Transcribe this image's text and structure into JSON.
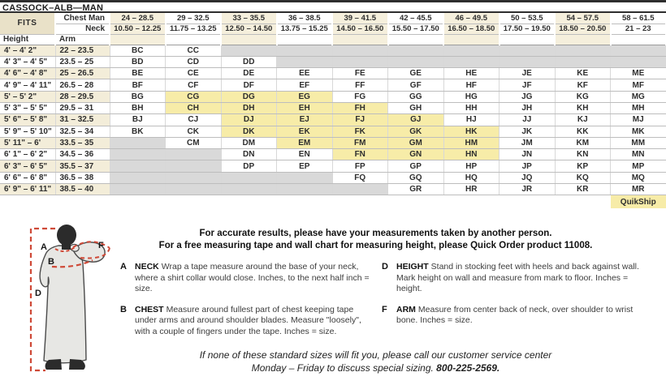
{
  "title": "CASSOCK–ALB—MAN",
  "table": {
    "fits_label": "FITS",
    "chest_label": "Chest Man",
    "neck_label": "Neck",
    "height_label": "Height",
    "arm_label": "Arm",
    "chest_ranges": [
      "24 – 28.5",
      "29 – 32.5",
      "33 – 35.5",
      "36 – 38.5",
      "39 – 41.5",
      "42 – 45.5",
      "46 – 49.5",
      "50 – 53.5",
      "54 – 57.5",
      "58 – 61.5"
    ],
    "neck_ranges": [
      "10.50 – 12.25",
      "11.75 – 13.25",
      "12.50 – 14.50",
      "13.75 – 15.25",
      "14.50 – 16.50",
      "15.50 – 17.50",
      "16.50 – 18.50",
      "17.50 – 19.50",
      "18.50 – 20.50",
      "21 – 23"
    ],
    "rows": [
      {
        "height": "4' – 4' 2\"",
        "arm": "22 – 23.5",
        "cells": [
          "BC",
          "CC",
          "",
          "",
          "",
          "",
          "",
          "",
          "",
          ""
        ]
      },
      {
        "height": "4' 3\" – 4' 5\"",
        "arm": "23.5 – 25",
        "cells": [
          "BD",
          "CD",
          "DD",
          "",
          "",
          "",
          "",
          "",
          "",
          ""
        ]
      },
      {
        "height": "4' 6\" – 4' 8\"",
        "arm": "25 – 26.5",
        "cells": [
          "BE",
          "CE",
          "DE",
          "EE",
          "FE",
          "GE",
          "HE",
          "JE",
          "KE",
          "ME"
        ]
      },
      {
        "height": "4' 9\" – 4' 11\"",
        "arm": "26.5 – 28",
        "cells": [
          "BF",
          "CF",
          "DF",
          "EF",
          "FF",
          "GF",
          "HF",
          "JF",
          "KF",
          "MF"
        ]
      },
      {
        "height": "5' – 5' 2\"",
        "arm": "28 – 29.5",
        "cells": [
          "BG",
          "CG",
          "DG",
          "EG",
          "FG",
          "GG",
          "HG",
          "JG",
          "KG",
          "MG"
        ]
      },
      {
        "height": "5' 3\" – 5' 5\"",
        "arm": "29.5 – 31",
        "cells": [
          "BH",
          "CH",
          "DH",
          "EH",
          "FH",
          "GH",
          "HH",
          "JH",
          "KH",
          "MH"
        ]
      },
      {
        "height": "5' 6\" – 5' 8\"",
        "arm": "31 – 32.5",
        "cells": [
          "BJ",
          "CJ",
          "DJ",
          "EJ",
          "FJ",
          "GJ",
          "HJ",
          "JJ",
          "KJ",
          "MJ"
        ]
      },
      {
        "height": "5' 9\" – 5' 10\"",
        "arm": "32.5 – 34",
        "cells": [
          "BK",
          "CK",
          "DK",
          "EK",
          "FK",
          "GK",
          "HK",
          "JK",
          "KK",
          "MK"
        ]
      },
      {
        "height": "5' 11\" – 6'",
        "arm": "33.5 – 35",
        "cells": [
          "",
          "CM",
          "DM",
          "EM",
          "FM",
          "GM",
          "HM",
          "JM",
          "KM",
          "MM"
        ]
      },
      {
        "height": "6' 1\" – 6' 2\"",
        "arm": "34.5 – 36",
        "cells": [
          "",
          "",
          "DN",
          "EN",
          "FN",
          "GN",
          "HN",
          "JN",
          "KN",
          "MN"
        ]
      },
      {
        "height": "6' 3\" – 6' 5\"",
        "arm": "35.5 – 37",
        "cells": [
          "",
          "",
          "DP",
          "EP",
          "FP",
          "GP",
          "HP",
          "JP",
          "KP",
          "MP"
        ]
      },
      {
        "height": "6' 6\" – 6' 8\"",
        "arm": "36.5 – 38",
        "cells": [
          "",
          "",
          "",
          "",
          "FQ",
          "GQ",
          "HQ",
          "JQ",
          "KQ",
          "MQ"
        ]
      },
      {
        "height": "6' 9\" – 6' 11\"",
        "arm": "38.5 – 40",
        "cells": [
          "",
          "",
          "",
          "",
          "",
          "GR",
          "HR",
          "JR",
          "KR",
          "MR"
        ]
      }
    ],
    "quikship_codes": [
      "CG",
      "DG",
      "EG",
      "CH",
      "DH",
      "EH",
      "FH",
      "DJ",
      "EJ",
      "FJ",
      "GJ",
      "DK",
      "EK",
      "FK",
      "GK",
      "HK",
      "EM",
      "FM",
      "GM",
      "HM",
      "FN",
      "GN",
      "HN"
    ],
    "quikship_label": "QuikShip"
  },
  "intro": {
    "line1": "For accurate results, please have your measurements taken by another person.",
    "line2": "For a free measuring tape and wall chart for measuring height, please Quick Order product 11008."
  },
  "instructions": {
    "left": [
      {
        "letter": "A",
        "keyword": "NECK",
        "text": "Wrap a tape measure around the base of your neck, where a shirt collar would close. Inches, to the next half inch = size."
      },
      {
        "letter": "B",
        "keyword": "CHEST",
        "text": "Measure around fullest part of chest keeping tape under arms and around shoulder blades. Measure \"loosely\", with a couple of fingers under the tape. Inches = size."
      }
    ],
    "right": [
      {
        "letter": "D",
        "keyword": "HEIGHT",
        "text": "Stand in stocking feet with heels and back against wall. Mark height on wall and measure from mark to floor. Inches = height."
      },
      {
        "letter": "F",
        "keyword": "ARM",
        "text": "Measure from center back of neck, over shoulder to wrist bone. Inches = size."
      }
    ]
  },
  "footer": {
    "line1": "If none of these standard sizes will fit you, please call our customer service center",
    "line2_prefix": "Monday – Friday to discuss special sizing. ",
    "phone": "800-225-2569."
  },
  "figure": {
    "labels": [
      "A",
      "B",
      "D",
      "F"
    ]
  },
  "colors": {
    "header_cream": "#f5efdc",
    "fits_tan": "#e9e1c8",
    "row_stripe": "#f3edd9",
    "quikship_yellow": "#f7eca8",
    "unavailable_gray": "#d9d9d9",
    "dash_red": "#cf4a38",
    "text_dark": "#1d1d1d"
  }
}
